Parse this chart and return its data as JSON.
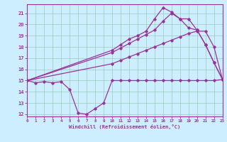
{
  "bg_color": "#cceeff",
  "line_color": "#993399",
  "grid_color": "#99ccbb",
  "xlim": [
    0,
    23
  ],
  "ylim": [
    11.8,
    21.8
  ],
  "yticks": [
    12,
    13,
    14,
    15,
    16,
    17,
    18,
    19,
    20,
    21
  ],
  "xticks": [
    0,
    1,
    2,
    3,
    4,
    5,
    6,
    7,
    8,
    9,
    10,
    11,
    12,
    13,
    14,
    15,
    16,
    17,
    18,
    19,
    20,
    21,
    22,
    23
  ],
  "s1_x": [
    0,
    1,
    2,
    3,
    4,
    5,
    6,
    7,
    8,
    9,
    10,
    11,
    12,
    13,
    14,
    15,
    16,
    17,
    18,
    19,
    20,
    21,
    22,
    23
  ],
  "s1_y": [
    15.0,
    14.8,
    14.9,
    14.8,
    14.9,
    14.2,
    12.1,
    12.0,
    12.5,
    13.0,
    15.0,
    15.0,
    15.0,
    15.0,
    15.0,
    15.0,
    15.0,
    15.0,
    15.0,
    15.0,
    15.0,
    15.0,
    15.0,
    15.1
  ],
  "s2_x": [
    0,
    10,
    11,
    12,
    13,
    14,
    15,
    16,
    17,
    18,
    19,
    20,
    21,
    22,
    23
  ],
  "s2_y": [
    15.0,
    16.5,
    16.8,
    17.1,
    17.4,
    17.7,
    18.0,
    18.3,
    18.6,
    18.9,
    19.2,
    19.4,
    19.4,
    18.0,
    15.1
  ],
  "s3_x": [
    0,
    10,
    11,
    12,
    13,
    14,
    15,
    16,
    17,
    18,
    19,
    20,
    21,
    22,
    23
  ],
  "s3_y": [
    15.0,
    17.5,
    17.9,
    18.3,
    18.7,
    19.1,
    19.5,
    20.3,
    21.0,
    20.5,
    19.7,
    19.5,
    18.2,
    16.6,
    15.1
  ],
  "s4_x": [
    0,
    10,
    11,
    12,
    13,
    14,
    15,
    16,
    17,
    18,
    19,
    20,
    21,
    22,
    23
  ],
  "s4_y": [
    15.0,
    17.7,
    18.2,
    18.7,
    19.0,
    19.4,
    20.5,
    21.5,
    21.1,
    20.5,
    20.5,
    19.5,
    18.2,
    16.6,
    15.1
  ],
  "xlabel": "Windchill (Refroidissement éolien,°C)"
}
